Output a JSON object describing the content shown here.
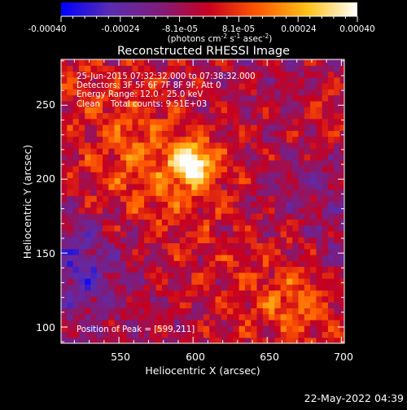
{
  "colorbar": {
    "tick_labels": [
      "-0.00040",
      "-0.00024",
      "-8.1e-05",
      "8.1e-05",
      "0.00024",
      "0.00040"
    ],
    "units": {
      "prefix": "(photons cm",
      "exp1": "-2",
      "mid": " s",
      "exp2": "-1",
      "mid2": " asec",
      "exp3": "-2",
      "suffix": ")"
    },
    "range": [
      -0.0004,
      0.0004
    ],
    "colormap_stops": [
      "#0000ff",
      "#5a2cb0",
      "#7f1c7a",
      "#c8001e",
      "#ff5a00",
      "#ffc21a",
      "#ffffff"
    ]
  },
  "title": "Reconstructed RHESSI Image",
  "info": {
    "time": "25-Jun-2015 07:32:32.000 to 07:38:32.000",
    "detectors": "Detectors: 3F 5F 6F 7F 8F 9F, Att 0",
    "energy": "Energy Range: 12.0 - 25.0 keV",
    "clean": "Clean    Total counts: 9.51E+03",
    "peak": "Position of Peak = [599,211]"
  },
  "axes": {
    "xlabel": "Heliocentric X (arcsec)",
    "ylabel": "Heliocentric Y (arcsec)",
    "xticks": [
      550,
      600,
      650,
      700
    ],
    "yticks": [
      100,
      150,
      200,
      250
    ],
    "xlim": [
      511,
      702
    ],
    "ylim": [
      89,
      281
    ]
  },
  "footer": {
    "timestamp": "22-May-2022 04:39"
  }
}
